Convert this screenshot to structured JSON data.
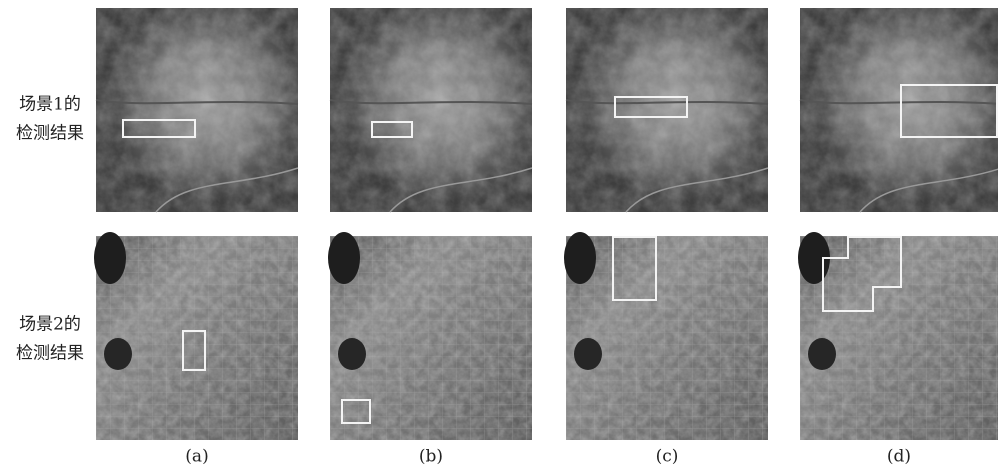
{
  "row_labels": [
    {
      "line1": "场景1的",
      "line2": "检测结果"
    },
    {
      "line1": "场景2的",
      "line2": "检测结果"
    }
  ],
  "column_labels": [
    "(a)",
    "(b)",
    "(c)",
    "(d)"
  ]
}
